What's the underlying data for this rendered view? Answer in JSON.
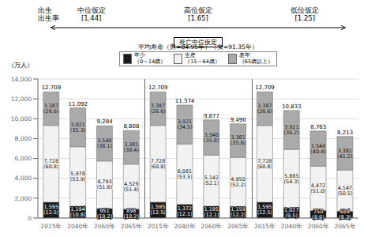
{
  "chart_data": {
    "type": "bar",
    "stacked": true,
    "grid": true,
    "data_labels": true,
    "categories": [
      "2015年",
      "2040年",
      "2060年",
      "2065年",
      "2015年",
      "2040年",
      "2060年",
      "2065年",
      "2015年",
      "2040年",
      "2060年",
      "2065年"
    ],
    "group_labels": [
      "中位仮定\n[1.44]",
      "高位仮定\n[1.65]",
      "低位仮定\n[1.25]"
    ],
    "series": [
      {
        "name": "年少\n（0～14歳）",
        "color": "#1a1a1a",
        "values": [
          1595,
          1194,
          951,
          898,
          1595,
          1372,
          1195,
          1159,
          1595,
          1027,
          750,
          684
        ],
        "value_labels": [
          "1,595\n(12.5)",
          "1,194\n(10.8)",
          "951\n(10.2)",
          "898\n(10.2)",
          "1,595\n(12.5)",
          "1,372\n(12.1)",
          "1,195\n(12.1)",
          "1,159\n(12.2)",
          "1,595\n(12.5)",
          "1,027\n(9.5)",
          "750\n(8.6)",
          "684\n(8.3)"
        ]
      },
      {
        "name": "生産\n（15～64歳）",
        "color": "#f2f2f2",
        "values": [
          7728,
          5978,
          4793,
          4529,
          7728,
          6081,
          5142,
          4950,
          7728,
          5885,
          4472,
          4147
        ],
        "value_labels": [
          "7,728\n(60.8)",
          "5,978\n(53.9)",
          "4,793\n(51.6)",
          "4,529\n(51.4)",
          "7,728\n(60.8)",
          "6,081\n(53.5)",
          "5,142\n(52.1)",
          "4,950\n(52.2)",
          "7,728\n(60.8)",
          "5,885\n(54.3)",
          "4,472\n(51.0)",
          "4,147\n(50.5)"
        ]
      },
      {
        "name": "老年\n（65歳以上）",
        "color": "#aaaaaa",
        "values": [
          3387,
          3921,
          3540,
          3381,
          3387,
          3921,
          3540,
          3381,
          3387,
          3921,
          3540,
          3381
        ],
        "value_labels": [
          "3,387\n(26.6)",
          "3,921\n(35.3)",
          "3,540\n(38.1)",
          "3,381\n(38.4)",
          "3,387\n(26.6)",
          "3,921\n(34.5)",
          "3,540\n(35.8)",
          "3,381\n(35.6)",
          "3,387\n(26.6)",
          "3,921\n(36.2)",
          "3,540\n(40.4)",
          "3,381\n(41.2)"
        ]
      }
    ],
    "totals": [
      12709,
      11092,
      9284,
      8808,
      12709,
      11374,
      9877,
      9490,
      12709,
      10833,
      8763,
      8213
    ],
    "total_labels": [
      "12,709",
      "11,092",
      "9,284",
      "8,808",
      "12,709",
      "11,374",
      "9,877",
      "9,490",
      "12,709",
      "10,833",
      "8,763",
      "8,213"
    ],
    "edge_color": "#666666",
    "ylabel": "（万人）",
    "annotations": [
      "出生\n出生率",
      "死亡中位仮定",
      "平均寿命（男=84.95年）（女=91.35年）"
    ],
    "ylim": [
      0,
      14000
    ],
    "yticks": [
      0,
      {
        "value": 2000,
        "label": "2,000"
      },
      {
        "value": 4000,
        "label": "4,000"
      },
      {
        "value": 6000,
        "label": "6,000"
      },
      {
        "value": 8000,
        "label": "8,000"
      },
      {
        "value": 10000,
        "label": "10,000"
      },
      {
        "value": 12000,
        "label": "12,000"
      },
      {
        "value": 14000,
        "label": "14,000"
      }
    ]
  }
}
